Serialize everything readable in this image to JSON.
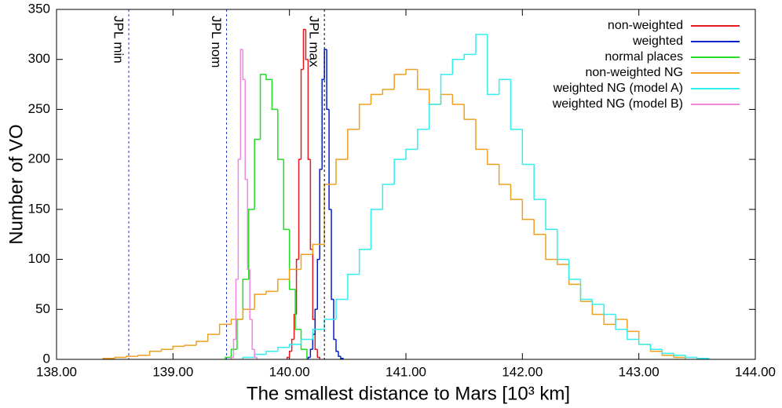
{
  "chart_data": {
    "type": "histogram",
    "xlabel": "The smallest distance to Mars [10³ km]",
    "ylabel": "Number of VO",
    "xlim": [
      138,
      144
    ],
    "ylim": [
      0,
      350
    ],
    "xticks": [
      {
        "value": 138,
        "label": "138.00"
      },
      {
        "value": 139,
        "label": "139.00"
      },
      {
        "value": 140,
        "label": "140.00"
      },
      {
        "value": 141,
        "label": "141.00"
      },
      {
        "value": 142,
        "label": "142.00"
      },
      {
        "value": 143,
        "label": "143.00"
      },
      {
        "value": 144,
        "label": "144.00"
      }
    ],
    "yticks": [
      0,
      50,
      100,
      150,
      200,
      250,
      300,
      350
    ],
    "legend": "top-right",
    "annotations": [
      {
        "text": "JPL min",
        "x": 138.62
      },
      {
        "text": "JPL nom",
        "x": 139.46
      },
      {
        "text": "JPL max",
        "x": 140.3
      }
    ],
    "series": [
      {
        "name": "non-weighted",
        "color": "#e41a1c",
        "bins": [
          139.98,
          140.0,
          140.02,
          140.04,
          140.06,
          140.08,
          140.1,
          140.12,
          140.14,
          140.16,
          140.18,
          140.2,
          140.22,
          140.24,
          140.26
        ],
        "values": [
          2,
          8,
          20,
          45,
          100,
          200,
          290,
          330,
          300,
          200,
          110,
          40,
          10,
          2
        ]
      },
      {
        "name": "weighted",
        "color": "#0022cc",
        "bins": [
          140.16,
          140.18,
          140.2,
          140.22,
          140.24,
          140.26,
          140.28,
          140.3,
          140.32,
          140.34,
          140.36,
          140.38,
          140.4,
          140.42,
          140.44,
          140.46
        ],
        "values": [
          2,
          10,
          25,
          50,
          100,
          190,
          280,
          310,
          250,
          150,
          60,
          20,
          8,
          3,
          1
        ]
      },
      {
        "name": "normal places",
        "color": "#22dd22",
        "bins": [
          139.45,
          139.5,
          139.55,
          139.6,
          139.65,
          139.7,
          139.75,
          139.8,
          139.85,
          139.9,
          139.95,
          140.0,
          140.05,
          140.1,
          140.15
        ],
        "values": [
          2,
          10,
          40,
          80,
          150,
          220,
          285,
          280,
          250,
          200,
          130,
          70,
          30,
          10
        ]
      },
      {
        "name": "non-weighted NG",
        "color": "#eea020",
        "bins": [
          138.4,
          138.5,
          138.6,
          138.7,
          138.8,
          138.9,
          139.0,
          139.1,
          139.2,
          139.3,
          139.4,
          139.5,
          139.6,
          139.7,
          139.8,
          139.9,
          140.0,
          140.1,
          140.2,
          140.3,
          140.4,
          140.5,
          140.6,
          140.7,
          140.8,
          140.9,
          141.0,
          141.1,
          141.2,
          141.3,
          141.4,
          141.5,
          141.6,
          141.7,
          141.8,
          141.9,
          142.0,
          142.1,
          142.2,
          142.3,
          142.4,
          142.5,
          142.6,
          142.7,
          142.8,
          142.9,
          143.0,
          143.1,
          143.2,
          143.3,
          143.4
        ],
        "values": [
          1,
          2,
          3,
          4,
          8,
          10,
          13,
          14,
          18,
          25,
          35,
          40,
          50,
          65,
          68,
          80,
          90,
          105,
          115,
          175,
          200,
          230,
          255,
          265,
          270,
          285,
          290,
          270,
          255,
          265,
          255,
          240,
          210,
          195,
          175,
          160,
          140,
          125,
          100,
          95,
          75,
          58,
          45,
          35,
          40,
          28,
          15,
          8,
          4,
          2
        ]
      },
      {
        "name": "weighted NG (model A)",
        "color": "#33eeee",
        "bins": [
          139.6,
          139.7,
          139.8,
          139.9,
          140.0,
          140.1,
          140.2,
          140.3,
          140.4,
          140.5,
          140.6,
          140.7,
          140.8,
          140.9,
          141.0,
          141.1,
          141.2,
          141.3,
          141.4,
          141.5,
          141.6,
          141.7,
          141.8,
          141.9,
          142.0,
          142.1,
          142.2,
          142.3,
          142.4,
          142.5,
          142.6,
          142.7,
          142.8,
          142.9,
          143.0,
          143.1,
          143.2,
          143.3,
          143.4,
          143.5,
          143.6
        ],
        "values": [
          2,
          5,
          8,
          12,
          15,
          20,
          30,
          40,
          60,
          85,
          110,
          150,
          175,
          200,
          210,
          230,
          255,
          285,
          300,
          305,
          325,
          265,
          280,
          230,
          195,
          160,
          130,
          100,
          80,
          60,
          55,
          45,
          30,
          20,
          15,
          10,
          6,
          4,
          2,
          1
        ]
      },
      {
        "name": "weighted NG (model B)",
        "color": "#ee88dd",
        "bins": [
          139.5,
          139.52,
          139.54,
          139.56,
          139.58,
          139.6,
          139.62,
          139.64,
          139.66,
          139.68,
          139.7,
          139.72
        ],
        "values": [
          2,
          20,
          80,
          200,
          310,
          280,
          180,
          90,
          40,
          10,
          2
        ]
      }
    ]
  }
}
